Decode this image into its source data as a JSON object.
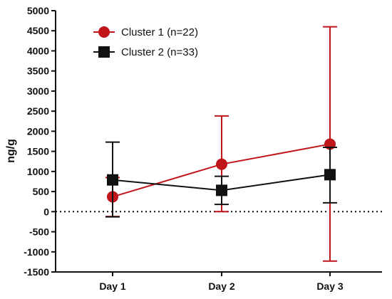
{
  "chart_data": {
    "type": "line",
    "title": "",
    "xlabel": "",
    "ylabel": "ng/g",
    "categories": [
      "Day 1",
      "Day 2",
      "Day 3"
    ],
    "ylim": [
      -1500,
      5000
    ],
    "yticks": [
      "5000",
      "4500",
      "4000",
      "3500",
      "3000",
      "2500",
      "2000",
      "1500",
      "1000",
      "500",
      "0",
      "-500",
      "-1000",
      "-1500"
    ],
    "reference_line": {
      "y": 0,
      "style": "dotted"
    },
    "grid": false,
    "legend_position": "top-left",
    "series": [
      {
        "name": "Cluster 1 (n=22)",
        "color": "#c0151b",
        "marker": "circle",
        "values": [
          370,
          1180,
          1680
        ],
        "error_low": [
          -120,
          0,
          -1230
        ],
        "error_high": [
          850,
          2380,
          4600
        ]
      },
      {
        "name": "Cluster 2 (n=33)",
        "color": "#111111",
        "marker": "square",
        "values": [
          790,
          530,
          920
        ],
        "error_low": [
          -130,
          180,
          220
        ],
        "error_high": [
          1730,
          880,
          1600
        ]
      }
    ]
  }
}
